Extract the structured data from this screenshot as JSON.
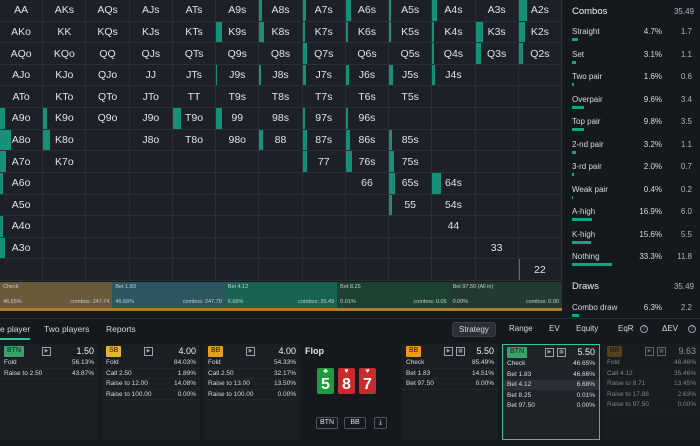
{
  "grid": {
    "hands": [
      [
        "AA",
        "AKs",
        "AQs",
        "AJs",
        "ATs",
        "A9s",
        "A8s",
        "A7s",
        "A6s",
        "A5s",
        "A4s",
        "A3s",
        "A2s"
      ],
      [
        "AKo",
        "KK",
        "KQs",
        "KJs",
        "KTs",
        "K9s",
        "K8s",
        "K7s",
        "K6s",
        "K5s",
        "K4s",
        "K3s",
        "K2s"
      ],
      [
        "AQo",
        "KQo",
        "QQ",
        "QJs",
        "QTs",
        "Q9s",
        "Q8s",
        "Q7s",
        "Q6s",
        "Q5s",
        "Q4s",
        "Q3s",
        "Q2s"
      ],
      [
        "AJo",
        "KJo",
        "QJo",
        "JJ",
        "JTs",
        "J9s",
        "J8s",
        "J7s",
        "J6s",
        "J5s",
        "J4s",
        "",
        ""
      ],
      [
        "ATo",
        "KTo",
        "QTo",
        "JTo",
        "TT",
        "T9s",
        "T8s",
        "T7s",
        "T6s",
        "T5s",
        "",
        "",
        ""
      ],
      [
        "A9o",
        "K9o",
        "Q9o",
        "J9o",
        "T9o",
        "99",
        "98s",
        "97s",
        "96s",
        "",
        "",
        "",
        ""
      ],
      [
        "A8o",
        "K8o",
        "",
        "J8o",
        "T8o",
        "98o",
        "88",
        "87s",
        "86s",
        "85s",
        "",
        "",
        ""
      ],
      [
        "A7o",
        "K7o",
        "",
        "",
        "",
        "",
        "",
        "77",
        "76s",
        "75s",
        "",
        "",
        ""
      ],
      [
        "A6o",
        "",
        "",
        "",
        "",
        "",
        "",
        "",
        "66",
        "65s",
        "64s",
        "",
        ""
      ],
      [
        "A5o",
        "",
        "",
        "",
        "",
        "",
        "",
        "",
        "",
        "55",
        "54s",
        "",
        ""
      ],
      [
        "A4o",
        "",
        "",
        "",
        "",
        "",
        "",
        "",
        "",
        "",
        "44",
        "",
        ""
      ],
      [
        "A3o",
        "",
        "",
        "",
        "",
        "",
        "",
        "",
        "",
        "",
        "",
        "33",
        ""
      ],
      [
        "",
        "",
        "",
        "",
        "",
        "",
        "",
        "",
        "",
        "",
        "",
        "",
        "22"
      ]
    ],
    "fills": [
      [
        0,
        0,
        0,
        0,
        0,
        0,
        0.06,
        0.08,
        0.12,
        0.04,
        0.1,
        0,
        0.2
      ],
      [
        0,
        0,
        0,
        0,
        0,
        0.15,
        0.1,
        0.06,
        0.04,
        0.04,
        0.03,
        0.18,
        0.15
      ],
      [
        0,
        0,
        0,
        0,
        0,
        0,
        0,
        0.1,
        0,
        0,
        0.03,
        0.12,
        0.1
      ],
      [
        0,
        0,
        0,
        0,
        0,
        0.02,
        0.05,
        0.08,
        0.08,
        0.1,
        0.06,
        0,
        0
      ],
      [
        0,
        0,
        0,
        0,
        0,
        0,
        0,
        0,
        0,
        0,
        0,
        0,
        0
      ],
      [
        0.12,
        0.08,
        0,
        0,
        0.18,
        0.15,
        0,
        0.06,
        0.06,
        0,
        0,
        0,
        0
      ],
      [
        0.25,
        0.15,
        0,
        0,
        0,
        0,
        0.08,
        0.1,
        0.1,
        0.07,
        0,
        0,
        0
      ],
      [
        0.15,
        0,
        0,
        0,
        0,
        0,
        0,
        0.1,
        0.15,
        0.12,
        0,
        0,
        0
      ],
      [
        0.08,
        0,
        0,
        0,
        0,
        0,
        0,
        0,
        0,
        0.15,
        0.2,
        0,
        0
      ],
      [
        0,
        0,
        0,
        0,
        0,
        0,
        0,
        0,
        0,
        0.08,
        0,
        0,
        0
      ],
      [
        0.06,
        0,
        0,
        0,
        0,
        0,
        0,
        0,
        0,
        0,
        0,
        0,
        0
      ],
      [
        0.12,
        0,
        0,
        0,
        0,
        0,
        0,
        0,
        0,
        0,
        0,
        0,
        0
      ],
      [
        0,
        0,
        0,
        0,
        0,
        0,
        0,
        0,
        0,
        0,
        0,
        0,
        0.04
      ]
    ]
  },
  "action_strip": [
    {
      "name": "Check",
      "pct": "46.65%",
      "combos": "combos: 247.74",
      "share": 0.2,
      "color": "#6a5a3a"
    },
    {
      "name": "Bet 1.83",
      "pct": "46.66%",
      "combos": "combos: 247.79",
      "share": 0.2,
      "color": "#2c5660"
    },
    {
      "name": "Bet 4.12",
      "pct": "6.68%",
      "combos": "combos: 35.49",
      "share": 0.2,
      "color": "#176452"
    },
    {
      "name": "Bet 8.25",
      "pct": "0.01%",
      "combos": "combos: 0.05",
      "share": 0.2,
      "color": "#1e4232"
    },
    {
      "name": "Bet 97.50 (All in)",
      "pct": "0.00%",
      "combos": "combos: 0.00",
      "share": 0.2,
      "color": "#223a30"
    }
  ],
  "combos_panel": {
    "title": "Combos",
    "total": "35.49",
    "rows": [
      {
        "label": "Straight",
        "pct": "4.7%",
        "count": "1.7",
        "bar": 0.05
      },
      {
        "label": "Set",
        "pct": "3.1%",
        "count": "1.1",
        "bar": 0.03
      },
      {
        "label": "Two pair",
        "pct": "1.6%",
        "count": "0.6",
        "bar": 0.02
      },
      {
        "label": "Overpair",
        "pct": "9.6%",
        "count": "3.4",
        "bar": 0.1
      },
      {
        "label": "Top pair",
        "pct": "9.8%",
        "count": "3.5",
        "bar": 0.1
      },
      {
        "label": "2-nd pair",
        "pct": "3.2%",
        "count": "1.1",
        "bar": 0.03
      },
      {
        "label": "3-rd pair",
        "pct": "2.0%",
        "count": "0.7",
        "bar": 0.02
      },
      {
        "label": "Weak pair",
        "pct": "0.4%",
        "count": "0.2",
        "bar": 0.005
      },
      {
        "label": "A-high",
        "pct": "16.9%",
        "count": "6.0",
        "bar": 0.17
      },
      {
        "label": "K-high",
        "pct": "15.6%",
        "count": "5.5",
        "bar": 0.16
      },
      {
        "label": "Nothing",
        "pct": "33.3%",
        "count": "11.8",
        "bar": 0.33
      }
    ],
    "draws_title": "Draws",
    "draws_total": "35.49",
    "draw_rows": [
      {
        "label": "Combo draw",
        "pct": "6.3%",
        "count": "2.2",
        "bar": 0.06
      }
    ]
  },
  "tabs": {
    "left": [
      "e player",
      "Two players",
      "Reports"
    ],
    "right": [
      "Strategy",
      "Range",
      "EV",
      "Equity",
      "EqR",
      "ΔEV"
    ],
    "help": "?"
  },
  "players": [
    {
      "badge": "BTN",
      "badge_color": "#3aa26b",
      "stack": "1.50",
      "actions": [
        [
          "Fold",
          "56.13%"
        ],
        [
          "Raise to 2.50",
          "43.87%"
        ]
      ]
    },
    {
      "badge": "SB",
      "badge_color": "#e0b43e",
      "stack": "4.00",
      "actions": [
        [
          "Fold",
          "84.03%"
        ],
        [
          "Call 2.50",
          "1.89%"
        ],
        [
          "Raise to 12.00",
          "14.08%"
        ],
        [
          "Raise to 100.00",
          "0.00%"
        ]
      ]
    },
    {
      "badge": "BB",
      "badge_color": "#e89a24",
      "stack": "4.00",
      "actions": [
        [
          "Fold",
          "54.33%"
        ],
        [
          "Call 2.50",
          "32.17%"
        ],
        [
          "Raise to 13.00",
          "13.50%"
        ],
        [
          "Raise to 100.00",
          "0.00%"
        ]
      ]
    }
  ],
  "flop": {
    "title": "Flop",
    "cards": [
      {
        "rank": "5",
        "suit": "♣",
        "color": "#1f9a3e"
      },
      {
        "rank": "8",
        "suit": "♥",
        "color": "#c72b2b"
      },
      {
        "rank": "7",
        "suit": "♥",
        "color": "#c72b2b"
      }
    ],
    "buttons": [
      "BTN",
      "BB"
    ]
  },
  "post_panels": [
    {
      "badge": "BB",
      "badge_color": "#e89a24",
      "stack": "5.50",
      "dim": false,
      "selected": false,
      "actions": [
        [
          "Check",
          "85.49%"
        ],
        [
          "Bet 1.83",
          "14.51%"
        ],
        [
          "Bet 97.50",
          "0.00%"
        ]
      ]
    },
    {
      "badge": "BTN",
      "badge_color": "#3aa26b",
      "stack": "5.50",
      "dim": false,
      "selected": true,
      "actions": [
        [
          "Check",
          "46.65%"
        ],
        [
          "Bet 1.83",
          "46.66%"
        ],
        [
          "Bet 4.12",
          "6.68%"
        ],
        [
          "Bet 8.25",
          "0.01%"
        ],
        [
          "Bet 97.50",
          "0.00%"
        ]
      ]
    },
    {
      "badge": "BB",
      "badge_color": "#8a6420",
      "stack": "9.63",
      "dim": true,
      "selected": false,
      "actions": [
        [
          "Fold",
          "48.46%"
        ],
        [
          "Call 4.12",
          "35.46%"
        ],
        [
          "Raise to 8.71",
          "13.45%"
        ],
        [
          "Raise to 17.88",
          "2.63%"
        ],
        [
          "Raise to 97.50",
          "0.00%"
        ]
      ]
    }
  ]
}
